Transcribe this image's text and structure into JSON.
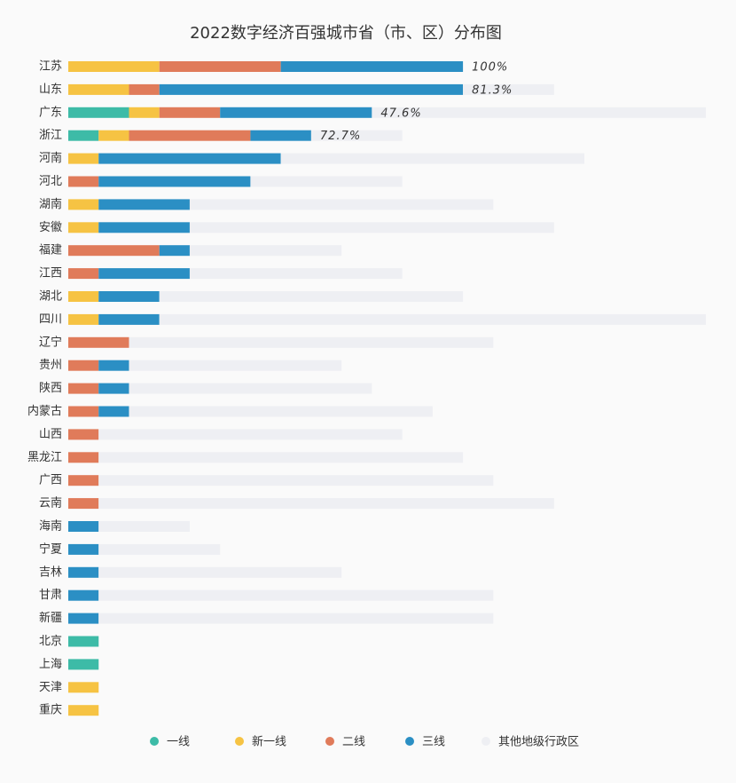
{
  "chart_data": {
    "type": "stacked-bar-horizontal",
    "title": "2022数字经济百强城市省（市、区）分布图",
    "categories": [
      "江苏",
      "山东",
      "广东",
      "浙江",
      "河南",
      "河北",
      "湖南",
      "安徽",
      "福建",
      "江西",
      "湖北",
      "四川",
      "辽宁",
      "贵州",
      "陕西",
      "内蒙古",
      "山西",
      "黑龙江",
      "广西",
      "云南",
      "海南",
      "宁夏",
      "吉林",
      "甘肃",
      "新疆",
      "北京",
      "上海",
      "天津",
      "重庆"
    ],
    "xlim": [
      0,
      21
    ],
    "series": [
      {
        "name": "一线",
        "color": "#3dbba7",
        "values": [
          0,
          0,
          2,
          1,
          0,
          0,
          0,
          0,
          0,
          0,
          0,
          0,
          0,
          0,
          0,
          0,
          0,
          0,
          0,
          0,
          0,
          0,
          0,
          0,
          0,
          1,
          1,
          0,
          0
        ]
      },
      {
        "name": "新一线",
        "color": "#f6c343",
        "values": [
          3,
          2,
          1,
          1,
          1,
          0,
          1,
          1,
          0,
          0,
          1,
          1,
          0,
          0,
          0,
          0,
          0,
          0,
          0,
          0,
          0,
          0,
          0,
          0,
          0,
          0,
          0,
          1,
          1
        ]
      },
      {
        "name": "二线",
        "color": "#e07b5a",
        "values": [
          4,
          1,
          2,
          4,
          0,
          1,
          0,
          0,
          3,
          1,
          0,
          0,
          2,
          1,
          1,
          1,
          1,
          1,
          1,
          1,
          0,
          0,
          0,
          0,
          0,
          0,
          0,
          0,
          0
        ]
      },
      {
        "name": "三线",
        "color": "#2b8fc4",
        "values": [
          6,
          10,
          5,
          2,
          6,
          5,
          3,
          3,
          1,
          3,
          2,
          2,
          0,
          1,
          1,
          1,
          0,
          0,
          0,
          0,
          1,
          1,
          1,
          1,
          1,
          0,
          0,
          0,
          0
        ]
      },
      {
        "name": "其他地级行政区",
        "color": "#eeeff3",
        "values": [
          0,
          3,
          11,
          3,
          10,
          5,
          10,
          12,
          5,
          7,
          10,
          18,
          12,
          7,
          8,
          10,
          10,
          12,
          13,
          15,
          3,
          4,
          8,
          13,
          13,
          0,
          0,
          0,
          0
        ]
      }
    ],
    "annotations": [
      "100%",
      "81.3%",
      "47.6%",
      "72.7%"
    ]
  }
}
